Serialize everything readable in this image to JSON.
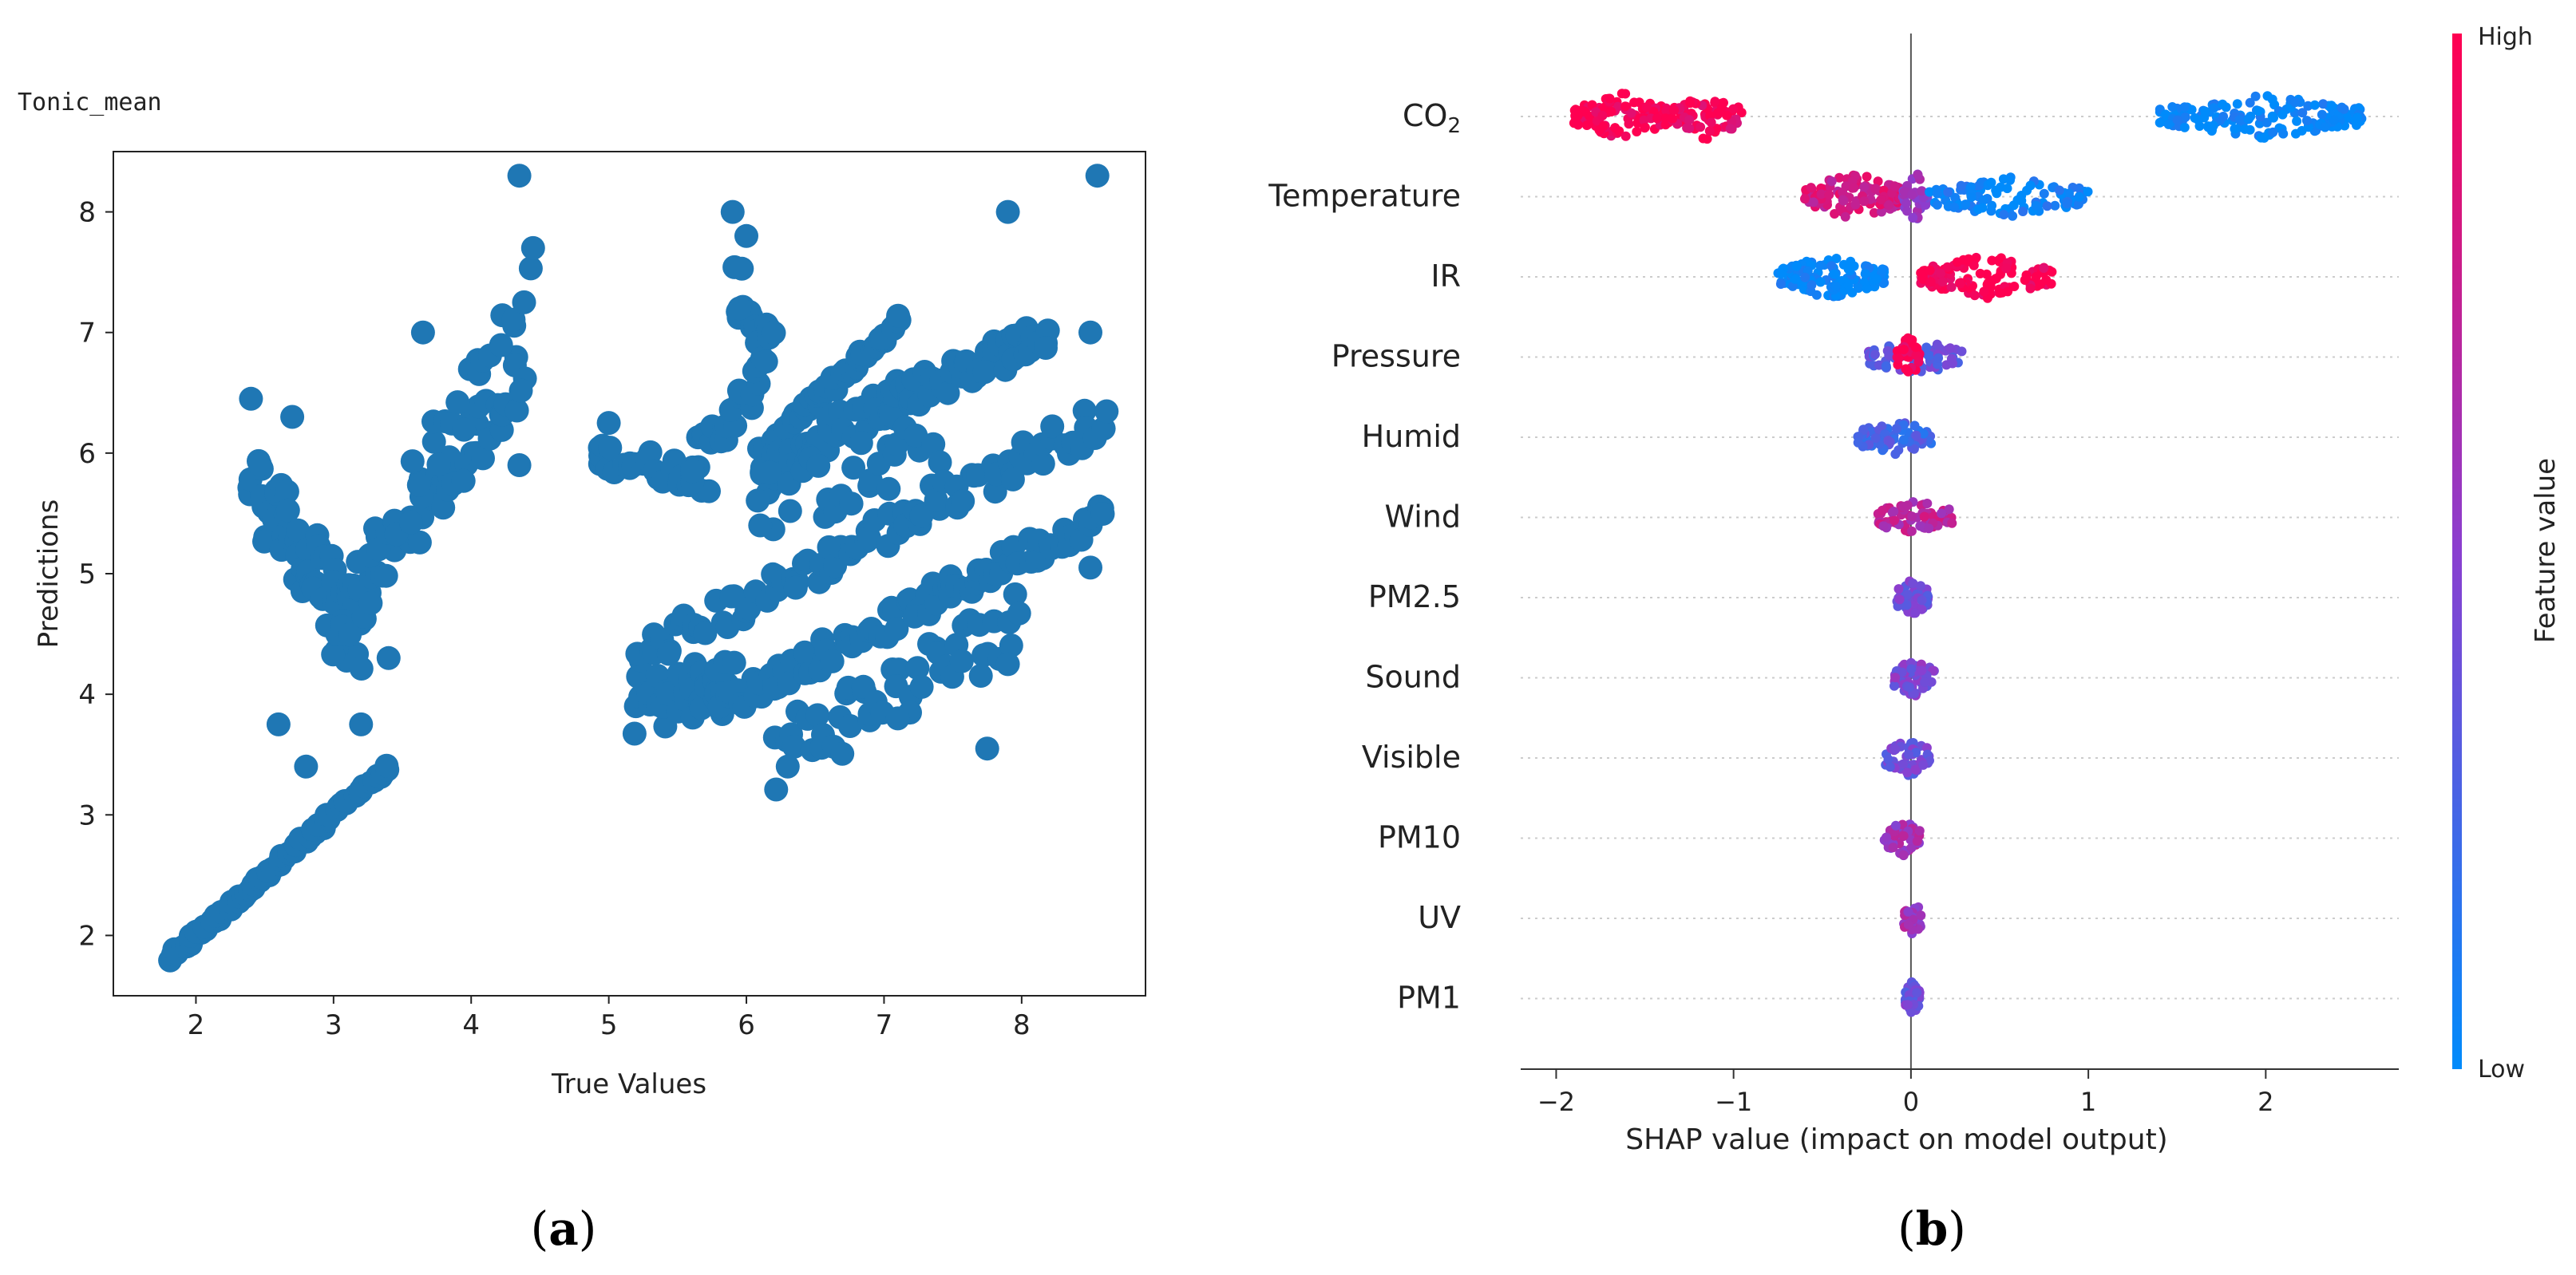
{
  "colors": {
    "scatter": "#1f77b4",
    "shap_high": "#ff0051",
    "shap_mid": "#8a3fd0",
    "shap_low": "#008bfb",
    "axis": "#333333",
    "gridline": "#cccccc"
  },
  "panel_a": {
    "caption": "(a)",
    "caption_letter": "a",
    "chart_data": {
      "type": "scatter",
      "title": "Tonic_mean",
      "xlabel": "True Values",
      "ylabel": "Predictions",
      "xlim": [
        1.4,
        8.9
      ],
      "ylim": [
        1.5,
        8.5
      ],
      "xticks": [
        2,
        3,
        4,
        5,
        6,
        7,
        8
      ],
      "yticks": [
        2,
        3,
        4,
        5,
        6,
        7,
        8
      ],
      "segments": [
        {
          "x0": 1.8,
          "y0": 1.8,
          "x1": 3.4,
          "y1": 3.4,
          "n": 70,
          "jitter": 0.02
        },
        {
          "x0": 2.4,
          "y0": 5.8,
          "x1": 3.2,
          "y1": 4.4,
          "n": 60,
          "jitter": 0.35
        },
        {
          "x0": 3.0,
          "y0": 4.5,
          "x1": 4.4,
          "y1": 6.7,
          "n": 60,
          "jitter": 0.25
        },
        {
          "x0": 3.2,
          "y0": 5.0,
          "x1": 4.4,
          "y1": 7.3,
          "n": 30,
          "jitter": 0.25
        },
        {
          "x0": 4.9,
          "y0": 6.0,
          "x1": 5.7,
          "y1": 5.8,
          "n": 30,
          "jitter": 0.12
        },
        {
          "x0": 5.6,
          "y0": 5.9,
          "x1": 6.1,
          "y1": 6.6,
          "n": 25,
          "jitter": 0.15
        },
        {
          "x0": 5.9,
          "y0": 7.4,
          "x1": 6.2,
          "y1": 6.8,
          "n": 18,
          "jitter": 0.2
        },
        {
          "x0": 6.1,
          "y0": 6.0,
          "x1": 7.1,
          "y1": 7.1,
          "n": 55,
          "jitter": 0.05
        },
        {
          "x0": 6.1,
          "y0": 5.8,
          "x1": 7.1,
          "y1": 6.5,
          "n": 40,
          "jitter": 0.15
        },
        {
          "x0": 7.0,
          "y0": 6.4,
          "x1": 8.2,
          "y1": 7.0,
          "n": 55,
          "jitter": 0.15
        },
        {
          "x0": 6.1,
          "y0": 5.6,
          "x1": 7.4,
          "y1": 6.0,
          "n": 30,
          "jitter": 0.3
        },
        {
          "x0": 5.2,
          "y0": 3.9,
          "x1": 5.9,
          "y1": 4.1,
          "n": 40,
          "jitter": 0.25
        },
        {
          "x0": 5.2,
          "y0": 4.3,
          "x1": 8.6,
          "y1": 6.3,
          "n": 90,
          "jitter": 0.15
        },
        {
          "x0": 5.8,
          "y0": 3.9,
          "x1": 8.6,
          "y1": 5.5,
          "n": 90,
          "jitter": 0.12
        },
        {
          "x0": 6.2,
          "y0": 3.5,
          "x1": 8.0,
          "y1": 4.6,
          "n": 50,
          "jitter": 0.3
        }
      ],
      "outliers": [
        [
          4.35,
          8.3
        ],
        [
          4.45,
          7.7
        ],
        [
          5.9,
          8.0
        ],
        [
          6.0,
          7.8
        ],
        [
          7.9,
          8.0
        ],
        [
          8.55,
          8.3
        ],
        [
          8.5,
          7.0
        ],
        [
          2.4,
          6.45
        ],
        [
          2.7,
          6.3
        ],
        [
          2.6,
          3.75
        ],
        [
          2.8,
          3.4
        ],
        [
          3.2,
          3.75
        ],
        [
          5.95,
          7.2
        ],
        [
          6.3,
          3.4
        ],
        [
          7.75,
          3.55
        ],
        [
          7.1,
          3.8
        ],
        [
          3.65,
          7.0
        ],
        [
          4.35,
          5.9
        ],
        [
          3.4,
          4.3
        ],
        [
          5.0,
          6.25
        ],
        [
          6.1,
          5.4
        ],
        [
          7.9,
          4.25
        ],
        [
          8.5,
          5.05
        ]
      ]
    }
  },
  "panel_b": {
    "caption": "(b)",
    "caption_letter": "b",
    "chart_data": {
      "type": "scatter",
      "title": "",
      "xlabel": "SHAP value (impact on model output)",
      "ylabel": "",
      "xlim": [
        -2.2,
        2.75
      ],
      "xticks": [
        -2,
        -1,
        0,
        1,
        2
      ],
      "colorbar": {
        "label": "Feature value",
        "high": "High",
        "low": "Low"
      },
      "features": [
        {
          "name": "CO",
          "subscript": "2",
          "clusters": [
            {
              "lo": -1.9,
              "hi": -1.35,
              "c": 1.0,
              "n": 110,
              "w": 0.9
            },
            {
              "lo": -1.35,
              "hi": -0.95,
              "c": 0.95,
              "n": 70,
              "w": 0.9
            },
            {
              "lo": 1.4,
              "hi": 2.55,
              "c": 0.0,
              "n": 170,
              "w": 0.8
            }
          ]
        },
        {
          "name": "Temperature",
          "clusters": [
            {
              "lo": -0.6,
              "hi": -0.05,
              "c": 0.8,
              "n": 110,
              "w": 1.0
            },
            {
              "lo": -0.05,
              "hi": 0.1,
              "c": 0.55,
              "n": 40,
              "w": 1.0
            },
            {
              "lo": 0.1,
              "hi": 1.0,
              "c": 0.05,
              "n": 110,
              "w": 0.7
            }
          ]
        },
        {
          "name": "IR",
          "clusters": [
            {
              "lo": -0.75,
              "hi": -0.15,
              "c": 0.0,
              "n": 120,
              "w": 0.8
            },
            {
              "lo": 0.05,
              "hi": 0.8,
              "c": 1.0,
              "n": 120,
              "w": 0.8
            }
          ]
        },
        {
          "name": "Pressure",
          "clusters": [
            {
              "lo": -0.25,
              "hi": 0.3,
              "c": 0.35,
              "n": 70,
              "w": 0.5
            },
            {
              "lo": -0.08,
              "hi": 0.05,
              "c": 1.0,
              "n": 30,
              "w": 0.8
            }
          ]
        },
        {
          "name": "Humid",
          "clusters": [
            {
              "lo": -0.3,
              "hi": 0.12,
              "c": 0.25,
              "n": 75,
              "w": 0.55
            }
          ]
        },
        {
          "name": "Wind",
          "clusters": [
            {
              "lo": -0.2,
              "hi": 0.25,
              "c": 0.7,
              "n": 70,
              "w": 0.5
            }
          ]
        },
        {
          "name": "PM2.5",
          "clusters": [
            {
              "lo": -0.08,
              "hi": 0.1,
              "c": 0.4,
              "n": 55,
              "w": 0.6
            }
          ]
        },
        {
          "name": "Sound",
          "clusters": [
            {
              "lo": -0.1,
              "hi": 0.14,
              "c": 0.45,
              "n": 55,
              "w": 0.6
            }
          ]
        },
        {
          "name": "Visible",
          "clusters": [
            {
              "lo": -0.15,
              "hi": 0.12,
              "c": 0.4,
              "n": 55,
              "w": 0.6
            }
          ]
        },
        {
          "name": "PM10",
          "clusters": [
            {
              "lo": -0.15,
              "hi": 0.05,
              "c": 0.6,
              "n": 45,
              "w": 0.6
            }
          ]
        },
        {
          "name": "UV",
          "clusters": [
            {
              "lo": -0.04,
              "hi": 0.06,
              "c": 0.6,
              "n": 35,
              "w": 0.5
            }
          ]
        },
        {
          "name": "PM1",
          "clusters": [
            {
              "lo": -0.04,
              "hi": 0.05,
              "c": 0.4,
              "n": 35,
              "w": 0.5
            }
          ]
        }
      ]
    }
  }
}
